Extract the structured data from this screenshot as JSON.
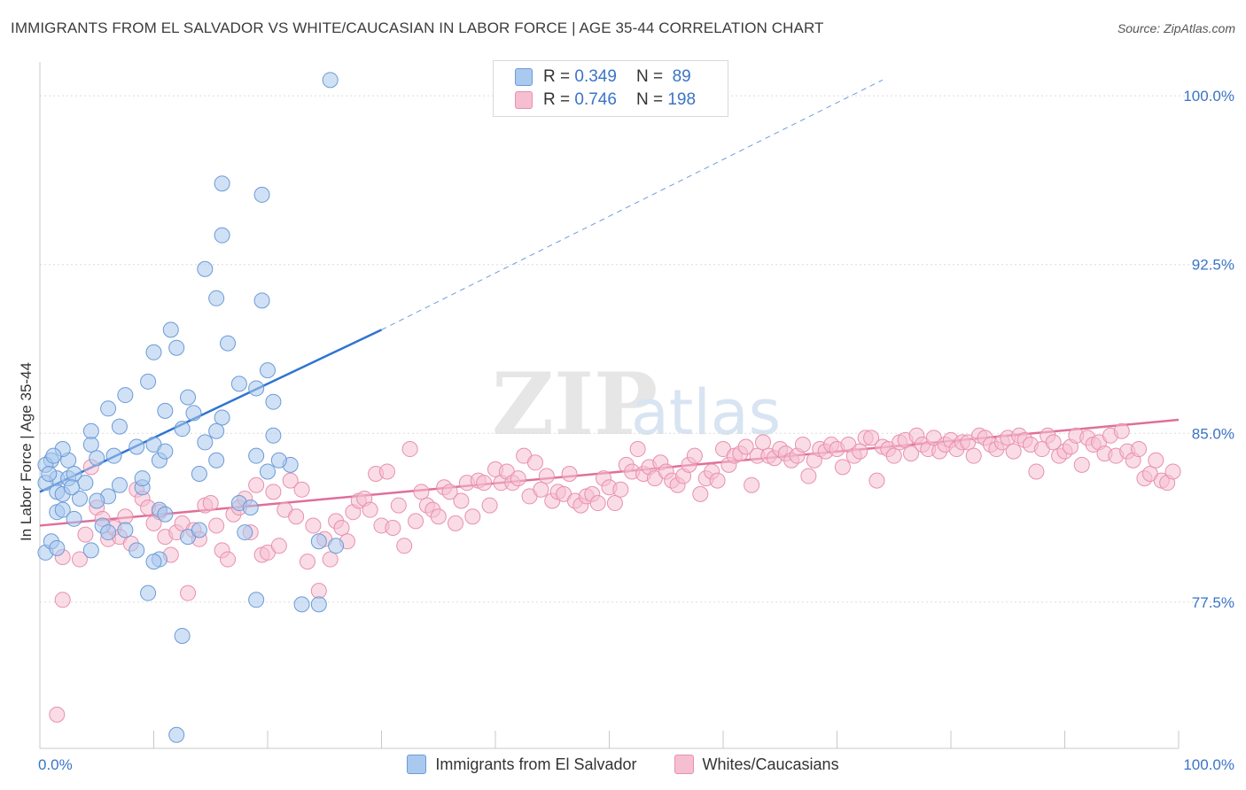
{
  "title": "IMMIGRANTS FROM EL SALVADOR VS WHITE/CAUCASIAN IN LABOR FORCE | AGE 35-44 CORRELATION CHART",
  "source": "Source: ZipAtlas.com",
  "watermark": {
    "zip": "ZIP",
    "atlas": "atlas"
  },
  "legend": {
    "rows": [
      {
        "r_label": "R = ",
        "r_value": "0.349",
        "n_label": "N = ",
        "n_value": "89"
      },
      {
        "r_label": "R = ",
        "r_value": "0.746",
        "n_label": "N = ",
        "n_value": "198"
      }
    ]
  },
  "bottom_legend": [
    "Immigrants from El Salvador",
    "Whites/Caucasians"
  ],
  "colors": {
    "blue_fill": "#aac9ef",
    "blue_stroke": "#6b9bd6",
    "blue_line": "#2f74d0",
    "pink_fill": "#f6bfd1",
    "pink_stroke": "#e890ae",
    "pink_line": "#e06e9a",
    "axis_text": "#3a74c7",
    "grid": "#dcdcdc"
  },
  "chart_data": {
    "type": "scatter",
    "title": "IMMIGRANTS FROM EL SALVADOR VS WHITE/CAUCASIAN IN LABOR FORCE | AGE 35-44 CORRELATION CHART",
    "xlabel": "",
    "ylabel": "In Labor Force | Age 35-44",
    "xlim": [
      0,
      100
    ],
    "ylim": [
      71.0,
      101.5
    ],
    "x_tick_labels": [
      "0.0%",
      "100.0%"
    ],
    "y_ticks": [
      77.5,
      85.0,
      92.5,
      100.0
    ],
    "y_tick_labels": [
      "77.5%",
      "85.0%",
      "92.5%",
      "100.0%"
    ],
    "series": [
      {
        "name": "Immigrants from El Salvador",
        "R": 0.349,
        "N": 89,
        "trend": {
          "x0": 0.0,
          "y0": 82.4,
          "x1": 30.0,
          "y1": 89.6,
          "dash_to_x": 74.0,
          "dash_to_y": 100.7
        },
        "points": [
          [
            25.5,
            100.7
          ],
          [
            16,
            96.1
          ],
          [
            19.5,
            95.6
          ],
          [
            16,
            93.8
          ],
          [
            14.5,
            92.3
          ],
          [
            15.5,
            91.0
          ],
          [
            19.5,
            90.9
          ],
          [
            11.5,
            89.6
          ],
          [
            16.5,
            89.0
          ],
          [
            12,
            88.8
          ],
          [
            10,
            88.6
          ],
          [
            20,
            87.8
          ],
          [
            9.5,
            87.3
          ],
          [
            17.5,
            87.2
          ],
          [
            19,
            87.0
          ],
          [
            7.5,
            86.7
          ],
          [
            13,
            86.6
          ],
          [
            20.5,
            86.4
          ],
          [
            6,
            86.1
          ],
          [
            11,
            86.0
          ],
          [
            13.5,
            85.9
          ],
          [
            16,
            85.7
          ],
          [
            7,
            85.3
          ],
          [
            12.5,
            85.2
          ],
          [
            15.5,
            85.1
          ],
          [
            20.5,
            84.9
          ],
          [
            14.5,
            84.6
          ],
          [
            4.5,
            84.5
          ],
          [
            10,
            84.5
          ],
          [
            8.5,
            84.4
          ],
          [
            6.5,
            84.0
          ],
          [
            19,
            84.0
          ],
          [
            5,
            83.9
          ],
          [
            15.5,
            83.8
          ],
          [
            2.5,
            83.8
          ],
          [
            10.5,
            83.8
          ],
          [
            1,
            83.8
          ],
          [
            0.5,
            83.6
          ],
          [
            14,
            83.2
          ],
          [
            1.5,
            83.0
          ],
          [
            2.5,
            83.0
          ],
          [
            4,
            82.8
          ],
          [
            0.5,
            82.8
          ],
          [
            7,
            82.7
          ],
          [
            9,
            82.6
          ],
          [
            1.5,
            82.4
          ],
          [
            2,
            82.3
          ],
          [
            6,
            82.2
          ],
          [
            3.5,
            82.1
          ],
          [
            5,
            82.0
          ],
          [
            17.5,
            81.9
          ],
          [
            18.5,
            81.7
          ],
          [
            10.5,
            81.6
          ],
          [
            1.5,
            81.5
          ],
          [
            2,
            81.6
          ],
          [
            3,
            81.2
          ],
          [
            11,
            81.4
          ],
          [
            5.5,
            80.9
          ],
          [
            7.5,
            80.7
          ],
          [
            13,
            80.4
          ],
          [
            8.5,
            79.8
          ],
          [
            18,
            80.6
          ],
          [
            24.5,
            80.2
          ],
          [
            26,
            80.0
          ],
          [
            4.5,
            79.8
          ],
          [
            0.5,
            79.7
          ],
          [
            1,
            80.2
          ],
          [
            1.5,
            79.9
          ],
          [
            6,
            80.6
          ],
          [
            10.5,
            79.4
          ],
          [
            10,
            79.3
          ],
          [
            9.5,
            77.9
          ],
          [
            19,
            77.6
          ],
          [
            23,
            77.4
          ],
          [
            24.5,
            77.4
          ],
          [
            12.5,
            76.0
          ],
          [
            12,
            71.6
          ],
          [
            14,
            80.7
          ],
          [
            3,
            83.2
          ],
          [
            20,
            83.3
          ],
          [
            22,
            83.6
          ],
          [
            21,
            83.8
          ],
          [
            2,
            84.3
          ],
          [
            4.5,
            85.1
          ],
          [
            11,
            84.2
          ],
          [
            9,
            83.0
          ],
          [
            1.2,
            84.0
          ],
          [
            0.8,
            83.2
          ],
          [
            2.8,
            82.6
          ]
        ]
      },
      {
        "name": "Whites/Caucasians",
        "R": 0.746,
        "N": 198,
        "trend": {
          "x0": 0.0,
          "y0": 80.9,
          "x1": 100.0,
          "y1": 85.6
        },
        "points": [
          [
            1.5,
            72.5
          ],
          [
            2,
            77.6
          ],
          [
            2,
            79.5
          ],
          [
            3.5,
            79.4
          ],
          [
            4,
            80.5
          ],
          [
            4.5,
            83.5
          ],
          [
            5,
            81.7
          ],
          [
            5.5,
            81.2
          ],
          [
            6,
            80.3
          ],
          [
            6.5,
            80.8
          ],
          [
            7,
            80.4
          ],
          [
            7.5,
            81.3
          ],
          [
            8,
            80.1
          ],
          [
            8.5,
            82.5
          ],
          [
            9,
            82.1
          ],
          [
            9.5,
            81.7
          ],
          [
            10,
            81.0
          ],
          [
            10.5,
            81.5
          ],
          [
            11,
            80.4
          ],
          [
            11.5,
            79.6
          ],
          [
            12,
            80.6
          ],
          [
            12.5,
            81.0
          ],
          [
            13,
            77.9
          ],
          [
            13.5,
            80.7
          ],
          [
            14,
            80.3
          ],
          [
            14.5,
            81.8
          ],
          [
            15,
            81.9
          ],
          [
            15.5,
            80.9
          ],
          [
            16,
            79.8
          ],
          [
            16.5,
            79.4
          ],
          [
            17,
            81.4
          ],
          [
            17.5,
            81.7
          ],
          [
            18,
            82.1
          ],
          [
            18.5,
            80.6
          ],
          [
            19,
            82.7
          ],
          [
            19.5,
            79.6
          ],
          [
            20,
            79.7
          ],
          [
            20.5,
            82.4
          ],
          [
            21,
            80.0
          ],
          [
            21.5,
            81.6
          ],
          [
            22,
            82.9
          ],
          [
            22.5,
            81.3
          ],
          [
            23,
            82.5
          ],
          [
            23.5,
            79.3
          ],
          [
            24,
            80.9
          ],
          [
            24.5,
            78.0
          ],
          [
            25,
            80.3
          ],
          [
            25.5,
            79.4
          ],
          [
            26,
            81.1
          ],
          [
            26.5,
            80.8
          ],
          [
            27,
            80.2
          ],
          [
            27.5,
            81.5
          ],
          [
            28,
            82.0
          ],
          [
            28.5,
            82.1
          ],
          [
            29,
            81.6
          ],
          [
            29.5,
            83.2
          ],
          [
            30,
            80.9
          ],
          [
            30.5,
            83.3
          ],
          [
            31,
            80.8
          ],
          [
            31.5,
            81.8
          ],
          [
            32,
            80.0
          ],
          [
            32.5,
            84.3
          ],
          [
            33,
            81.1
          ],
          [
            33.5,
            82.4
          ],
          [
            34,
            81.8
          ],
          [
            34.5,
            81.6
          ],
          [
            35,
            81.3
          ],
          [
            35.5,
            82.6
          ],
          [
            36,
            82.4
          ],
          [
            36.5,
            81.0
          ],
          [
            37,
            82.0
          ],
          [
            37.5,
            82.8
          ],
          [
            38,
            81.3
          ],
          [
            38.5,
            82.9
          ],
          [
            39,
            82.8
          ],
          [
            39.5,
            81.8
          ],
          [
            40,
            83.4
          ],
          [
            40.5,
            82.8
          ],
          [
            41,
            83.3
          ],
          [
            41.5,
            82.8
          ],
          [
            42,
            83.0
          ],
          [
            42.5,
            84.0
          ],
          [
            43,
            82.2
          ],
          [
            43.5,
            83.7
          ],
          [
            44,
            82.5
          ],
          [
            44.5,
            83.1
          ],
          [
            45,
            82.0
          ],
          [
            45.5,
            82.4
          ],
          [
            46,
            82.3
          ],
          [
            46.5,
            83.2
          ],
          [
            47,
            82.0
          ],
          [
            47.5,
            81.8
          ],
          [
            48,
            82.2
          ],
          [
            48.5,
            82.3
          ],
          [
            49,
            81.9
          ],
          [
            49.5,
            83.0
          ],
          [
            50,
            82.6
          ],
          [
            50.5,
            81.9
          ],
          [
            51,
            82.5
          ],
          [
            51.5,
            83.6
          ],
          [
            52,
            83.3
          ],
          [
            52.5,
            84.3
          ],
          [
            53,
            83.2
          ],
          [
            53.5,
            83.5
          ],
          [
            54,
            83.0
          ],
          [
            54.5,
            83.7
          ],
          [
            55,
            83.3
          ],
          [
            55.5,
            82.9
          ],
          [
            56,
            82.7
          ],
          [
            56.5,
            83.1
          ],
          [
            57,
            83.6
          ],
          [
            57.5,
            84.0
          ],
          [
            58,
            82.3
          ],
          [
            58.5,
            83.0
          ],
          [
            59,
            83.3
          ],
          [
            59.5,
            82.9
          ],
          [
            60,
            84.3
          ],
          [
            60.5,
            83.6
          ],
          [
            61,
            84.0
          ],
          [
            61.5,
            84.1
          ],
          [
            62,
            84.4
          ],
          [
            62.5,
            82.7
          ],
          [
            63,
            84.0
          ],
          [
            63.5,
            84.6
          ],
          [
            64,
            84.0
          ],
          [
            64.5,
            83.9
          ],
          [
            65,
            84.3
          ],
          [
            65.5,
            84.1
          ],
          [
            66,
            83.8
          ],
          [
            66.5,
            84.0
          ],
          [
            67,
            84.5
          ],
          [
            67.5,
            83.1
          ],
          [
            68,
            83.8
          ],
          [
            68.5,
            84.3
          ],
          [
            69,
            84.2
          ],
          [
            69.5,
            84.5
          ],
          [
            70,
            84.3
          ],
          [
            70.5,
            83.5
          ],
          [
            71,
            84.5
          ],
          [
            71.5,
            84.0
          ],
          [
            72,
            84.2
          ],
          [
            72.5,
            84.8
          ],
          [
            73,
            84.8
          ],
          [
            73.5,
            82.9
          ],
          [
            74,
            84.4
          ],
          [
            74.5,
            84.3
          ],
          [
            75,
            84.0
          ],
          [
            75.5,
            84.6
          ],
          [
            76,
            84.7
          ],
          [
            76.5,
            84.1
          ],
          [
            77,
            84.9
          ],
          [
            77.5,
            84.5
          ],
          [
            78,
            84.3
          ],
          [
            78.5,
            84.8
          ],
          [
            79,
            84.2
          ],
          [
            79.5,
            84.5
          ],
          [
            80,
            84.7
          ],
          [
            80.5,
            84.3
          ],
          [
            81,
            84.6
          ],
          [
            81.5,
            84.6
          ],
          [
            82,
            84.0
          ],
          [
            82.5,
            84.9
          ],
          [
            83,
            84.8
          ],
          [
            83.5,
            84.5
          ],
          [
            84,
            84.3
          ],
          [
            84.5,
            84.6
          ],
          [
            85,
            84.8
          ],
          [
            85.5,
            84.2
          ],
          [
            86,
            84.9
          ],
          [
            86.5,
            84.7
          ],
          [
            87,
            84.5
          ],
          [
            87.5,
            83.3
          ],
          [
            88,
            84.3
          ],
          [
            88.5,
            84.9
          ],
          [
            89,
            84.6
          ],
          [
            89.5,
            84.0
          ],
          [
            90,
            84.2
          ],
          [
            90.5,
            84.4
          ],
          [
            91,
            84.9
          ],
          [
            91.5,
            83.6
          ],
          [
            92,
            84.8
          ],
          [
            92.5,
            84.5
          ],
          [
            93,
            84.6
          ],
          [
            93.5,
            84.1
          ],
          [
            94,
            84.9
          ],
          [
            94.5,
            84.0
          ],
          [
            95,
            85.1
          ],
          [
            95.5,
            84.2
          ],
          [
            96,
            83.8
          ],
          [
            96.5,
            84.3
          ],
          [
            97,
            83.0
          ],
          [
            97.5,
            83.2
          ],
          [
            98,
            83.8
          ],
          [
            98.5,
            82.9
          ],
          [
            99,
            82.8
          ],
          [
            99.5,
            83.3
          ]
        ]
      }
    ]
  }
}
